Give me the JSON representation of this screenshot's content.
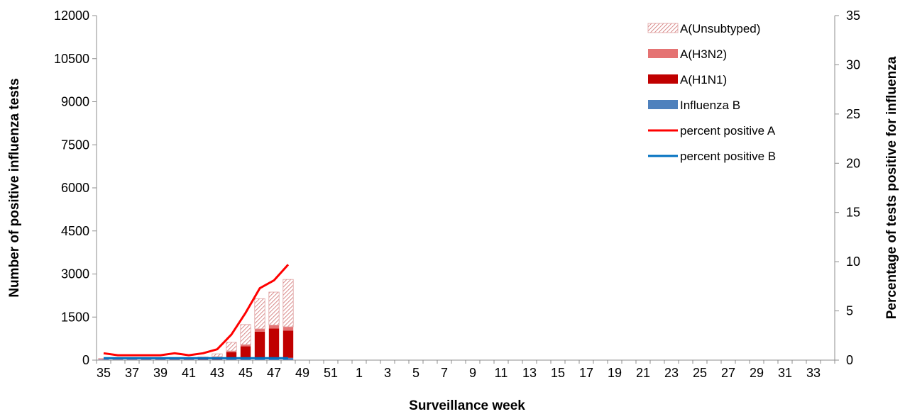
{
  "chart_data": {
    "type": "bar",
    "stacked": true,
    "xlabel": "Surveillance  week",
    "ylabel": "Number of positive influenza tests",
    "y2label": "Percentage of tests positive for influenza",
    "ylim": [
      0,
      12000
    ],
    "yticks": [
      0,
      1500,
      3000,
      4500,
      6000,
      7500,
      9000,
      10500,
      12000
    ],
    "y2lim": [
      0,
      35
    ],
    "y2ticks": [
      0,
      5,
      10,
      15,
      20,
      25,
      30,
      35
    ],
    "grid": false,
    "legend_position": "top-right",
    "categories": [
      "35",
      "36",
      "37",
      "38",
      "39",
      "40",
      "41",
      "42",
      "43",
      "44",
      "45",
      "46",
      "47",
      "48",
      "49",
      "50",
      "51",
      "52",
      "1",
      "2",
      "3",
      "4",
      "5",
      "6",
      "7",
      "8",
      "9",
      "10",
      "11",
      "12",
      "13",
      "14",
      "15",
      "16",
      "17",
      "18",
      "19",
      "20",
      "21",
      "22",
      "23",
      "24",
      "25",
      "26",
      "27",
      "28",
      "29",
      "30",
      "31",
      "32",
      "33",
      "34"
    ],
    "x_tick_labels": [
      "35",
      "37",
      "39",
      "41",
      "43",
      "45",
      "47",
      "49",
      "51",
      "1",
      "3",
      "5",
      "7",
      "9",
      "11",
      "13",
      "15",
      "17",
      "19",
      "21",
      "23",
      "25",
      "27",
      "29",
      "31",
      "33"
    ],
    "series": [
      {
        "name": "A(Unsubtyped)",
        "kind": "bar",
        "axis": "left",
        "color": "#e6a8a8",
        "pattern": "hatch",
        "values": [
          30,
          40,
          40,
          50,
          50,
          55,
          45,
          55,
          100,
          300,
          700,
          1050,
          1150,
          1650,
          null,
          null,
          null,
          null,
          null,
          null,
          null,
          null,
          null,
          null,
          null,
          null,
          null,
          null,
          null,
          null,
          null,
          null,
          null,
          null,
          null,
          null,
          null,
          null,
          null,
          null,
          null,
          null,
          null,
          null,
          null,
          null,
          null,
          null,
          null,
          null,
          null,
          null
        ]
      },
      {
        "name": "A(H3N2)",
        "kind": "bar",
        "axis": "left",
        "color": "#e57373",
        "values": [
          5,
          5,
          5,
          5,
          5,
          5,
          5,
          10,
          20,
          40,
          60,
          100,
          120,
          130,
          null,
          null,
          null,
          null,
          null,
          null,
          null,
          null,
          null,
          null,
          null,
          null,
          null,
          null,
          null,
          null,
          null,
          null,
          null,
          null,
          null,
          null,
          null,
          null,
          null,
          null,
          null,
          null,
          null,
          null,
          null,
          null,
          null,
          null,
          null,
          null,
          null,
          null
        ]
      },
      {
        "name": "A(H1N1)",
        "kind": "bar",
        "axis": "left",
        "color": "#c00000",
        "values": [
          5,
          5,
          5,
          10,
          10,
          10,
          10,
          30,
          80,
          250,
          450,
          950,
          1050,
          950,
          null,
          null,
          null,
          null,
          null,
          null,
          null,
          null,
          null,
          null,
          null,
          null,
          null,
          null,
          null,
          null,
          null,
          null,
          null,
          null,
          null,
          null,
          null,
          null,
          null,
          null,
          null,
          null,
          null,
          null,
          null,
          null,
          null,
          null,
          null,
          null,
          null,
          null
        ]
      },
      {
        "name": "Influenza B",
        "kind": "bar",
        "axis": "left",
        "color": "#4f81bd",
        "values": [
          20,
          20,
          20,
          20,
          20,
          20,
          20,
          20,
          20,
          30,
          30,
          40,
          50,
          80,
          null,
          null,
          null,
          null,
          null,
          null,
          null,
          null,
          null,
          null,
          null,
          null,
          null,
          null,
          null,
          null,
          null,
          null,
          null,
          null,
          null,
          null,
          null,
          null,
          null,
          null,
          null,
          null,
          null,
          null,
          null,
          null,
          null,
          null,
          null,
          null,
          null,
          null
        ]
      },
      {
        "name": "percent positive A",
        "kind": "line",
        "axis": "right",
        "color": "#ff0000",
        "values": [
          0.7,
          0.5,
          0.5,
          0.5,
          0.5,
          0.7,
          0.5,
          0.7,
          1.1,
          2.6,
          4.8,
          7.3,
          8.1,
          9.7,
          null,
          null,
          null,
          null,
          null,
          null,
          null,
          null,
          null,
          null,
          null,
          null,
          null,
          null,
          null,
          null,
          null,
          null,
          null,
          null,
          null,
          null,
          null,
          null,
          null,
          null,
          null,
          null,
          null,
          null,
          null,
          null,
          null,
          null,
          null,
          null,
          null,
          null
        ]
      },
      {
        "name": "percent positive B",
        "kind": "line",
        "axis": "right",
        "color": "#0070c0",
        "values": [
          0.2,
          0.2,
          0.2,
          0.2,
          0.2,
          0.2,
          0.2,
          0.2,
          0.2,
          0.2,
          0.2,
          0.2,
          0.2,
          0.2,
          null,
          null,
          null,
          null,
          null,
          null,
          null,
          null,
          null,
          null,
          null,
          null,
          null,
          null,
          null,
          null,
          null,
          null,
          null,
          null,
          null,
          null,
          null,
          null,
          null,
          null,
          null,
          null,
          null,
          null,
          null,
          null,
          null,
          null,
          null,
          null,
          null,
          null
        ]
      }
    ]
  }
}
